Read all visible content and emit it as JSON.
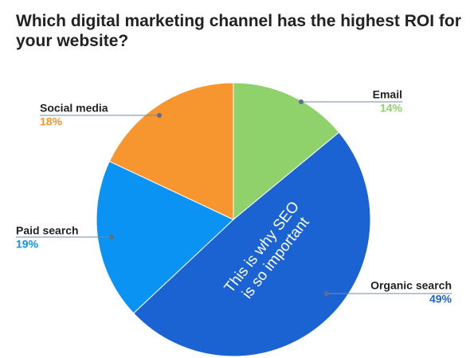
{
  "chart_data": {
    "type": "pie",
    "title": "Which digital marketing channel has the highest ROI for your website?",
    "categories": [
      "Email",
      "Organic search",
      "Paid search",
      "Social media"
    ],
    "values": [
      14,
      49,
      19,
      18
    ],
    "value_labels": [
      "14%",
      "49%",
      "19%",
      "18%"
    ],
    "colors": [
      "#8fd16a",
      "#1b63d3",
      "#0b93f4",
      "#f7952f"
    ],
    "annotation": [
      "This is why SEO",
      "is so important"
    ]
  }
}
